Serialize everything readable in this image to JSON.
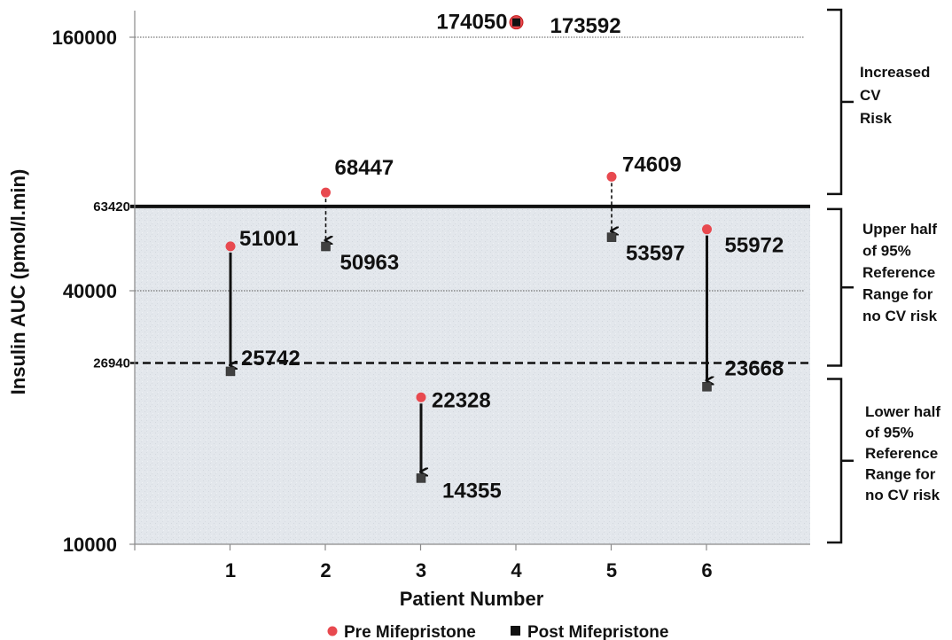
{
  "chart_data": {
    "type": "scatter",
    "xlabel": "Patient Number",
    "ylabel": "Insulin AUC (pmol/l.min)",
    "x_categories": [
      "1",
      "2",
      "3",
      "4",
      "5",
      "6"
    ],
    "y_ticks": [
      {
        "value": 10000,
        "label": "10000"
      },
      {
        "value": 40000,
        "label": "40000"
      },
      {
        "value": 160000,
        "label": "160000"
      }
    ],
    "reference_lines": [
      {
        "value": 63420,
        "label": "63420",
        "style": "solid"
      },
      {
        "value": 26940,
        "label": "26940",
        "style": "dashed"
      }
    ],
    "series": [
      {
        "name": "Pre Mifepristone",
        "color": "#e8494f",
        "marker": "circle",
        "points": [
          {
            "x": 1,
            "y": 51001,
            "label": "51001"
          },
          {
            "x": 2,
            "y": 68447,
            "label": "68447"
          },
          {
            "x": 3,
            "y": 22328,
            "label": "22328"
          },
          {
            "x": 4,
            "y": 174050,
            "label": "174050"
          },
          {
            "x": 5,
            "y": 74609,
            "label": "74609"
          },
          {
            "x": 6,
            "y": 55972,
            "label": "55972"
          }
        ]
      },
      {
        "name": "Post Mifepristone",
        "color": "#404040",
        "marker": "square",
        "points": [
          {
            "x": 1,
            "y": 25742,
            "label": "25742"
          },
          {
            "x": 2,
            "y": 50963,
            "label": "50963"
          },
          {
            "x": 3,
            "y": 14355,
            "label": "14355"
          },
          {
            "x": 4,
            "y": 173592,
            "label": "173592"
          },
          {
            "x": 5,
            "y": 53597,
            "label": "53597"
          },
          {
            "x": 6,
            "y": 23668,
            "label": "23668"
          }
        ]
      }
    ],
    "arrows": [
      {
        "x": 1,
        "style": "solid"
      },
      {
        "x": 2,
        "style": "dashed"
      },
      {
        "x": 3,
        "style": "solid"
      },
      {
        "x": 5,
        "style": "dashed"
      },
      {
        "x": 6,
        "style": "solid"
      }
    ],
    "bands": [
      {
        "lines": [
          "Increased",
          "CV",
          "Risk"
        ]
      },
      {
        "lines": [
          "Upper half",
          "of 95%",
          "Reference",
          "Range for",
          "no CV risk"
        ]
      },
      {
        "lines": [
          "Lower half",
          "of 95%",
          "Reference",
          "Range for",
          "no CV risk"
        ]
      }
    ],
    "legend": {
      "position": "bottom"
    },
    "scale": "log",
    "grid": false
  }
}
